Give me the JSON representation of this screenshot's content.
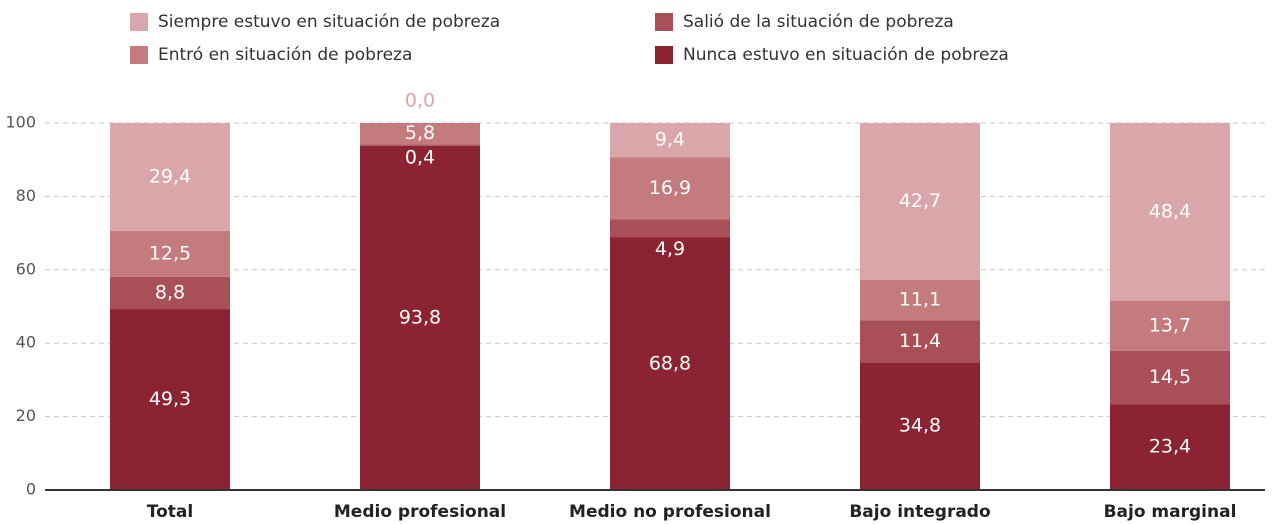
{
  "chart_data": {
    "type": "stacked_bar",
    "categories": [
      "Total",
      "Medio profesional",
      "Medio no profesional",
      "Bajo integrado",
      "Bajo marginal"
    ],
    "series": [
      {
        "name": "Nunca estuvo en situación de pobreza",
        "color": "#8b2332",
        "values": [
          49.3,
          93.8,
          68.8,
          34.8,
          23.4
        ],
        "value_labels": [
          "49,3",
          "93,8",
          "68,8",
          "34,8",
          "23,4"
        ]
      },
      {
        "name": "Salió de la situación de pobreza",
        "color": "#a84f57",
        "values": [
          8.8,
          0.4,
          4.9,
          11.4,
          14.5
        ],
        "value_labels": [
          "8,8",
          "0,4",
          "4,9",
          "11,4",
          "14,5"
        ]
      },
      {
        "name": "Entró en situación de pobreza",
        "color": "#c47b7e",
        "values": [
          12.5,
          5.8,
          16.9,
          11.1,
          13.7
        ],
        "value_labels": [
          "12,5",
          "5,8",
          "16,9",
          "11,1",
          "13,7"
        ]
      },
      {
        "name": "Siempre estuvo en situación de pobreza",
        "color": "#d9a7aa",
        "values": [
          29.4,
          0.0,
          9.4,
          42.7,
          48.4
        ],
        "value_labels": [
          "29,4",
          "0,0",
          "9,4",
          "42,7",
          "48,4"
        ]
      }
    ],
    "ylim": [
      0,
      100
    ],
    "yticks": [
      0,
      20,
      40,
      60,
      80,
      100
    ],
    "grid": true
  }
}
